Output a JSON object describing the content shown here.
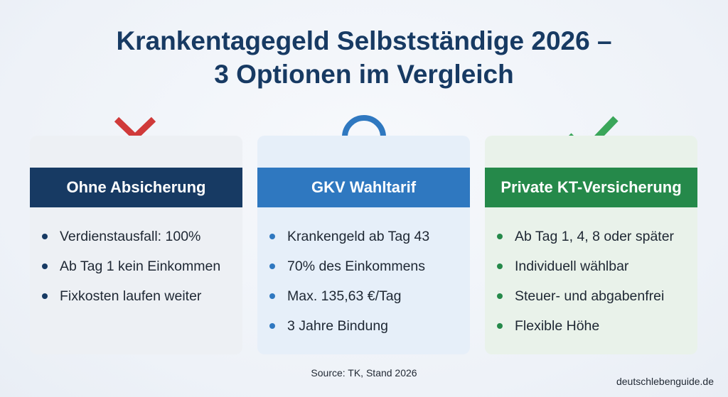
{
  "title": {
    "line1": "Krankentagegeld Selbstständige 2026 –",
    "line2": "3 Optionen im Vergleich"
  },
  "options": [
    {
      "icon": "cross-icon",
      "color": "#d03a3a",
      "header": "Ohne Absicherung",
      "header_color": "#173a63",
      "bullets": [
        "Verdienstausfall: 100%",
        "Ab Tag 1 kein Einkommen",
        "Fixkosten laufen weiter"
      ]
    },
    {
      "icon": "circle-icon",
      "color": "#2f78c0",
      "header": "GKV Wahltarif",
      "header_color": "#2f78c0",
      "bullets": [
        "Krankengeld ab Tag 43",
        "70% des Einkommens",
        "Max. 135,63 €/Tag",
        "3 Jahre Bindung"
      ]
    },
    {
      "icon": "checkmark-icon",
      "color": "#3aa65a",
      "header": "Private KT-Versicherung",
      "header_color": "#25894a",
      "bullets": [
        "Ab Tag 1, 4, 8 oder später",
        "Individuell wählbar",
        "Steuer- und abgabenfrei",
        "Flexible Höhe"
      ]
    }
  ],
  "source": "Source: TK, Stand 2026",
  "site": "deutschlebenguide.de"
}
